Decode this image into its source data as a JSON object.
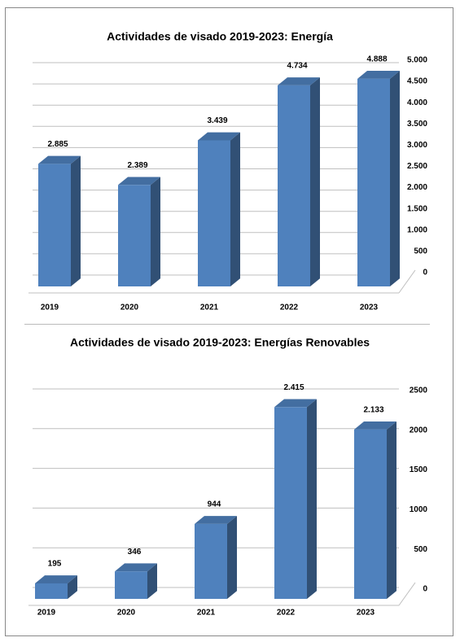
{
  "chart_data": [
    {
      "type": "bar3d",
      "title": "Actividades de visado 2019-2023: Energía",
      "categories": [
        "2019",
        "2020",
        "2021",
        "2022",
        "2023"
      ],
      "values": [
        2885,
        2389,
        3439,
        4734,
        4888
      ],
      "value_labels": [
        "2.885",
        "2.389",
        "3.439",
        "4.734",
        "4.888"
      ],
      "color": "#4f81bd",
      "ylim": [
        0,
        5000
      ],
      "yticks": [
        0,
        500,
        {
          "value": 1000,
          "label": "1.000"
        },
        {
          "value": 1500,
          "label": "1.500"
        },
        {
          "value": 2000,
          "label": "2.000"
        },
        {
          "value": 2500,
          "label": "2.500"
        },
        {
          "value": 3000,
          "label": "3.000"
        },
        {
          "value": 3500,
          "label": "3.500"
        },
        {
          "value": 4000,
          "label": "4.000"
        },
        {
          "value": 4500,
          "label": "4.500"
        },
        {
          "value": 5000,
          "label": "5.000"
        }
      ],
      "grid": true
    },
    {
      "type": "bar3d",
      "title": "Actividades de visado 2019-2023: Energías Renovables",
      "categories": [
        "2019",
        "2020",
        "2021",
        "2022",
        "2023"
      ],
      "values": [
        195,
        346,
        944,
        2415,
        2133
      ],
      "value_labels": [
        "195",
        "346",
        "944",
        "2.415",
        "2.133"
      ],
      "color": "#4f81bd",
      "ylim": [
        0,
        2500
      ],
      "yticks": [
        0,
        500,
        1000,
        1500,
        2000,
        2500
      ],
      "grid": true
    }
  ]
}
